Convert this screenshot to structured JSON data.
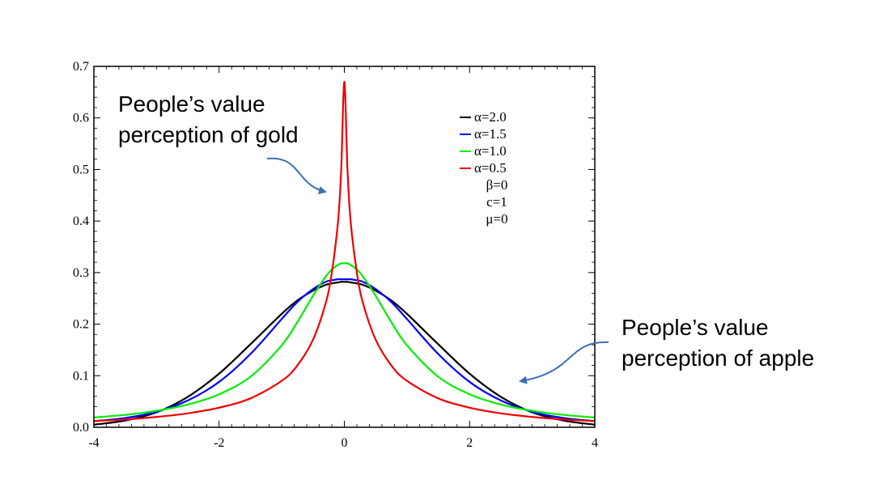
{
  "chart_data": {
    "type": "line",
    "title": "",
    "xlabel": "",
    "ylabel": "",
    "xlim": [
      -4,
      4
    ],
    "ylim": [
      0,
      0.7
    ],
    "x_ticks": [
      -4,
      -2,
      0,
      2,
      4
    ],
    "x_tick_labels": [
      "-4",
      "-2",
      "0",
      "2",
      "4"
    ],
    "y_ticks": [
      0,
      0.1,
      0.2,
      0.3,
      0.4,
      0.5,
      0.6,
      0.7
    ],
    "y_tick_labels": [
      "0.0",
      "0.1",
      "0.2",
      "0.3",
      "0.4",
      "0.5",
      "0.6",
      "0.7"
    ],
    "grid": false,
    "legend_position": "top-right",
    "distribution": "stable",
    "parameters": {
      "beta": 0,
      "c": 1,
      "mu": 0
    },
    "x": [
      -4,
      -3.5,
      -3,
      -2.5,
      -2,
      -1.5,
      -1,
      -0.75,
      -0.5,
      -0.3,
      -0.2,
      -0.1,
      -0.05,
      0,
      0.05,
      0.1,
      0.2,
      0.3,
      0.5,
      0.75,
      1,
      1.5,
      2,
      2.5,
      3,
      3.5,
      4
    ],
    "series": [
      {
        "name": "α=2.0",
        "alpha": 2.0,
        "color": "#000000",
        "values": [
          0.005,
          0.013,
          0.029,
          0.059,
          0.104,
          0.161,
          0.22,
          0.246,
          0.265,
          0.276,
          0.279,
          0.281,
          0.282,
          0.282,
          0.282,
          0.281,
          0.279,
          0.276,
          0.265,
          0.246,
          0.22,
          0.161,
          0.104,
          0.059,
          0.029,
          0.013,
          0.005
        ]
      },
      {
        "name": "α=1.5",
        "alpha": 1.5,
        "color": "#0000ff",
        "values": [
          0.012,
          0.018,
          0.03,
          0.052,
          0.088,
          0.142,
          0.21,
          0.243,
          0.268,
          0.282,
          0.285,
          0.287,
          0.287,
          0.287,
          0.287,
          0.287,
          0.285,
          0.282,
          0.268,
          0.243,
          0.21,
          0.142,
          0.088,
          0.052,
          0.03,
          0.018,
          0.012
        ]
      },
      {
        "name": "α=1.0",
        "alpha": 1.0,
        "color": "#00ee00",
        "values": [
          0.019,
          0.024,
          0.032,
          0.044,
          0.064,
          0.098,
          0.159,
          0.204,
          0.255,
          0.292,
          0.306,
          0.315,
          0.318,
          0.318,
          0.318,
          0.315,
          0.306,
          0.292,
          0.255,
          0.204,
          0.159,
          0.098,
          0.064,
          0.044,
          0.032,
          0.024,
          0.019
        ]
      },
      {
        "name": "α=0.5",
        "alpha": 0.5,
        "color": "#ee0000",
        "values": [
          0.012,
          0.015,
          0.02,
          0.027,
          0.038,
          0.056,
          0.09,
          0.12,
          0.17,
          0.24,
          0.3,
          0.4,
          0.5,
          0.67,
          0.5,
          0.4,
          0.3,
          0.24,
          0.17,
          0.12,
          0.09,
          0.056,
          0.038,
          0.027,
          0.02,
          0.015,
          0.012
        ]
      }
    ],
    "legend_extra": [
      "β=0",
      "c=1",
      "μ=0"
    ],
    "annotations": {
      "gold": [
        "People’s value",
        "perception of gold"
      ],
      "apple": [
        "People’s value",
        "perception of  apple"
      ]
    },
    "arrow_color": "#3b6fb6"
  }
}
